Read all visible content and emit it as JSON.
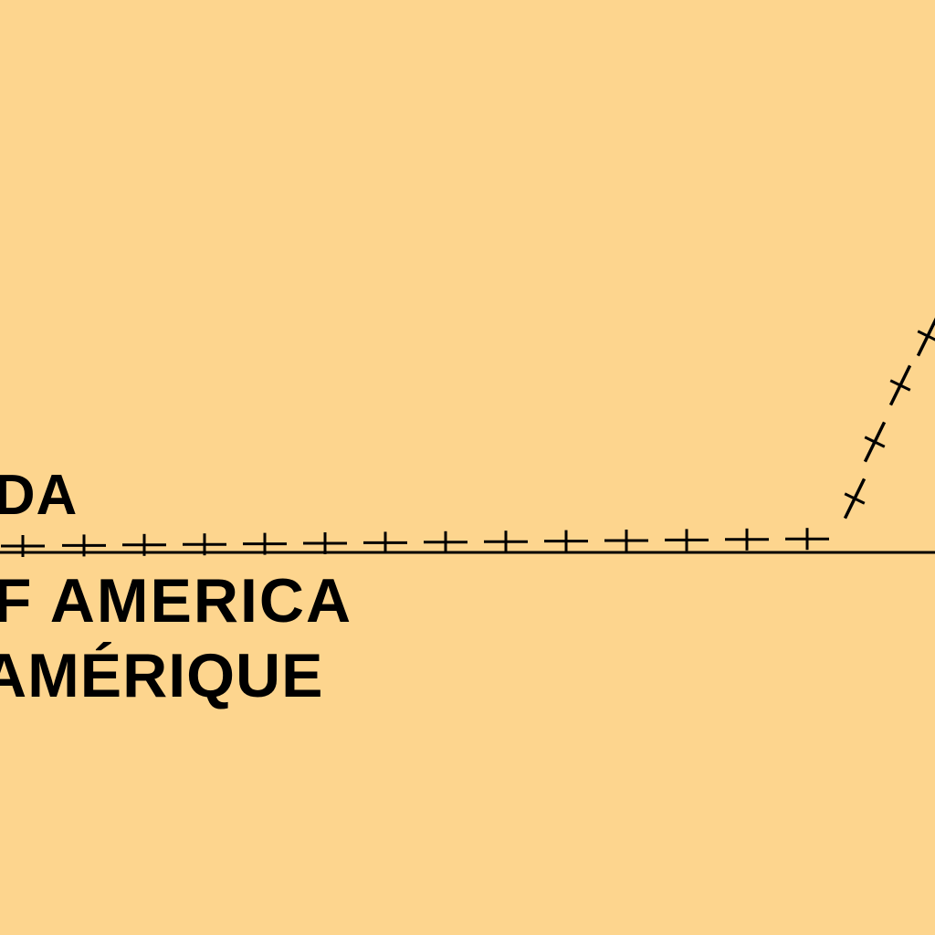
{
  "map": {
    "background_color": "#FDD58E",
    "ink_color": "#000000",
    "features": [
      {
        "kind": "national-boundary",
        "style": "dashed-with-crosses"
      },
      {
        "kind": "latitude-line",
        "style": "solid"
      }
    ]
  },
  "labels": {
    "canada": "ADA",
    "usa_en": "OF  AMERICA",
    "usa_fr": "AMÉRIQUE"
  }
}
